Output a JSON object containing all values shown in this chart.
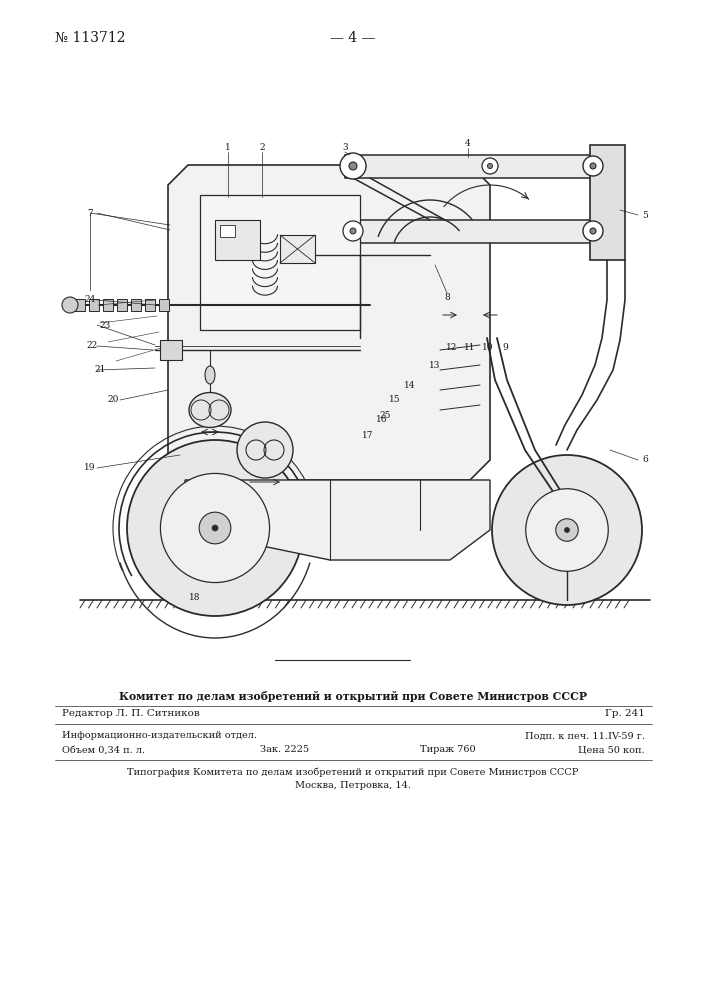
{
  "bg_color": "#ffffff",
  "patent_number": "№ 113712",
  "page_number": "— 4 —",
  "footer_line1": "Комитет по делам изобретений и открытий при Совете Министров СССР",
  "footer_line2": "Редактор Л. П. Ситников",
  "footer_gr": "Гр. 241",
  "footer_info": "Информационно-издательский отдел.",
  "footer_podp": "Подп. к печ. 11.IV-59 г.",
  "footer_obem": "Объем 0,34 п. л.",
  "footer_zak": "Зак. 2225",
  "footer_tirazh": "Тираж 760",
  "footer_cena": "Цена 50 коп.",
  "footer_tipogr": "Типография Комитета по делам изобретений и открытий при Совете Министров СССР",
  "footer_moskva": "Москва, Петровка, 14.",
  "line_color": "#2a2a2a",
  "text_color": "#1a1a1a"
}
